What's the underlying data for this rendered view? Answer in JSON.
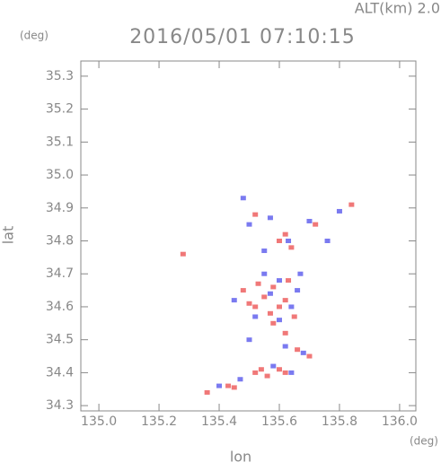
{
  "chart_data": {
    "type": "scatter",
    "title": "2016/05/01 07:10:15",
    "subtitle": "ALT(km) 2.0",
    "x_label": "lon",
    "y_label": "lat",
    "x_unit": "(deg)",
    "y_unit": "(deg)",
    "xlim": [
      134.94,
      136.054
    ],
    "ylim": [
      34.284,
      35.346
    ],
    "xticks": [
      {
        "value": 135,
        "label": "135.0"
      },
      135.2,
      135.4,
      135.6,
      135.8,
      {
        "value": 136,
        "label": "136.0"
      }
    ],
    "yticks": [
      34.3,
      34.4,
      34.5,
      34.6,
      34.7,
      34.8,
      34.9,
      {
        "value": 35,
        "label": "35.0"
      },
      35.1,
      35.2,
      35.3
    ],
    "grid": false,
    "series": [
      {
        "color": "#f07878",
        "x": [
          135.28,
          135.36,
          135.43,
          135.45,
          135.52,
          135.54,
          135.56,
          135.6,
          135.62,
          135.5,
          135.52,
          135.55,
          135.57,
          135.6,
          135.62,
          135.58,
          135.53,
          135.58,
          135.63,
          135.48,
          135.65,
          135.6,
          135.62,
          135.64,
          135.52,
          135.84,
          135.72,
          135.62,
          135.66,
          135.7
        ],
        "y": [
          34.76,
          34.34,
          34.36,
          34.355,
          34.4,
          34.41,
          34.39,
          34.41,
          34.4,
          34.61,
          34.6,
          34.63,
          34.58,
          34.6,
          34.62,
          34.55,
          34.67,
          34.66,
          34.68,
          34.65,
          34.57,
          34.8,
          34.82,
          34.78,
          34.88,
          34.91,
          34.85,
          34.52,
          34.47,
          34.45
        ]
      },
      {
        "color": "#7a7af0",
        "x": [
          135.4,
          135.47,
          135.5,
          135.58,
          135.64,
          135.68,
          135.55,
          135.6,
          135.57,
          135.64,
          135.52,
          135.6,
          135.45,
          135.66,
          135.5,
          135.57,
          135.63,
          135.7,
          135.76,
          135.8,
          135.48,
          135.55,
          135.67,
          135.62
        ],
        "y": [
          34.36,
          34.38,
          34.5,
          34.42,
          34.4,
          34.46,
          34.7,
          34.68,
          34.64,
          34.6,
          34.57,
          34.56,
          34.62,
          34.65,
          34.85,
          34.87,
          34.8,
          34.86,
          34.8,
          34.89,
          34.93,
          34.77,
          34.7,
          34.48
        ]
      }
    ]
  }
}
